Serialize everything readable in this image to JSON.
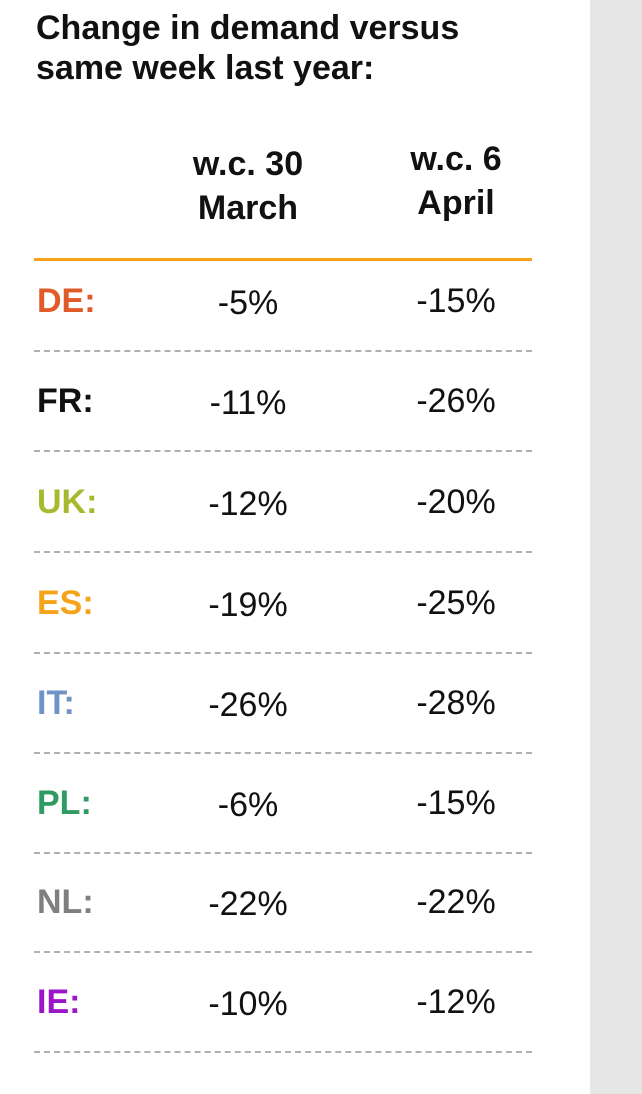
{
  "title": "Change in demand versus\nsame week last year:",
  "columns": [
    "w.c. 30\nMarch",
    "w.c. 6\nApril"
  ],
  "rows": [
    {
      "country": "DE:",
      "color": "#e15a29",
      "wc30": "-5%",
      "wc6": "-15%"
    },
    {
      "country": "FR:",
      "color": "#111111",
      "wc30": "-11%",
      "wc6": "-26%"
    },
    {
      "country": "UK:",
      "color": "#a7b92f",
      "wc30": "-12%",
      "wc6": "-20%"
    },
    {
      "country": "ES:",
      "color": "#f5a31a",
      "wc30": "-19%",
      "wc6": "-25%"
    },
    {
      "country": "IT:",
      "color": "#6f93c6",
      "wc30": "-26%",
      "wc6": "-28%"
    },
    {
      "country": "PL:",
      "color": "#2f9a61",
      "wc30": "-6%",
      "wc6": "-15%"
    },
    {
      "country": "NL:",
      "color": "#7f7f7f",
      "wc30": "-22%",
      "wc6": "-22%"
    },
    {
      "country": "IE:",
      "color": "#9b16c8",
      "wc30": "-10%",
      "wc6": "-12%"
    }
  ]
}
